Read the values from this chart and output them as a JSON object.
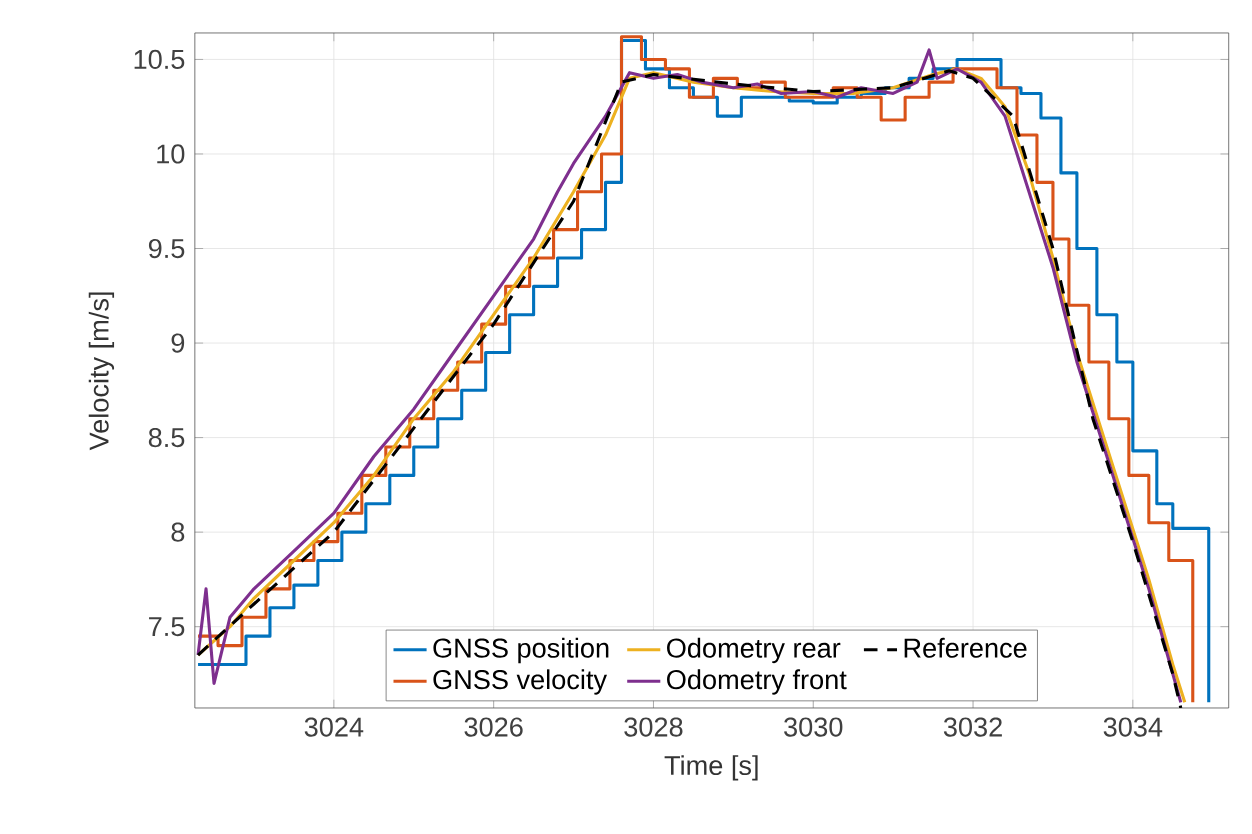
{
  "chart_data": {
    "type": "line",
    "xlabel": "Time [s]",
    "ylabel": "Velocity [m/s]",
    "xlim": [
      3022.26,
      3035.2
    ],
    "ylim": [
      7.07,
      10.64
    ],
    "xticks": [
      3024,
      3026,
      3028,
      3030,
      3032,
      3034
    ],
    "yticks": [
      7.5,
      8,
      8.5,
      9,
      9.5,
      10,
      10.5
    ],
    "grid": true,
    "legend": "bottom",
    "series": [
      {
        "name": "GNSS position",
        "type": "step",
        "color": "#0072bd",
        "x": [
          3022.3,
          3022.6,
          3022.9,
          3023.2,
          3023.5,
          3023.8,
          3024.1,
          3024.4,
          3024.7,
          3025.0,
          3025.3,
          3025.6,
          3025.9,
          3026.2,
          3026.5,
          3026.8,
          3027.1,
          3027.4,
          3027.6,
          3027.9,
          3028.2,
          3028.5,
          3028.8,
          3029.1,
          3029.4,
          3029.7,
          3030.0,
          3030.3,
          3030.6,
          3030.9,
          3031.2,
          3031.5,
          3031.8,
          3032.1,
          3032.35,
          3032.6,
          3032.85,
          3033.1,
          3033.3,
          3033.55,
          3033.8,
          3034.0,
          3034.3,
          3034.5,
          3034.95
        ],
        "values": [
          7.3,
          7.3,
          7.45,
          7.6,
          7.72,
          7.85,
          8.0,
          8.15,
          8.3,
          8.45,
          8.6,
          8.75,
          8.95,
          9.15,
          9.3,
          9.45,
          9.6,
          9.85,
          10.6,
          10.45,
          10.35,
          10.3,
          10.2,
          10.3,
          10.3,
          10.28,
          10.27,
          10.3,
          10.32,
          10.35,
          10.4,
          10.45,
          10.5,
          10.5,
          10.35,
          10.32,
          10.19,
          9.9,
          9.5,
          9.15,
          8.9,
          8.43,
          8.15,
          8.02,
          7.1
        ]
      },
      {
        "name": "GNSS velocity",
        "type": "step",
        "color": "#d95319",
        "x": [
          3022.3,
          3022.55,
          3022.85,
          3023.15,
          3023.45,
          3023.75,
          3024.05,
          3024.35,
          3024.65,
          3024.95,
          3025.25,
          3025.55,
          3025.85,
          3026.15,
          3026.45,
          3026.75,
          3027.05,
          3027.35,
          3027.6,
          3027.85,
          3028.15,
          3028.45,
          3028.75,
          3029.05,
          3029.35,
          3029.65,
          3029.95,
          3030.25,
          3030.55,
          3030.85,
          3031.15,
          3031.45,
          3031.75,
          3032.05,
          3032.3,
          3032.55,
          3032.8,
          3033.0,
          3033.2,
          3033.45,
          3033.7,
          3033.95,
          3034.2,
          3034.45,
          3034.75
        ],
        "values": [
          7.45,
          7.4,
          7.55,
          7.7,
          7.85,
          7.95,
          8.1,
          8.3,
          8.45,
          8.6,
          8.75,
          8.9,
          9.1,
          9.3,
          9.45,
          9.6,
          9.8,
          10.0,
          10.62,
          10.5,
          10.45,
          10.3,
          10.4,
          10.35,
          10.38,
          10.3,
          10.3,
          10.35,
          10.3,
          10.18,
          10.3,
          10.38,
          10.45,
          10.45,
          10.35,
          10.1,
          9.85,
          9.55,
          9.2,
          8.9,
          8.6,
          8.3,
          8.05,
          7.85,
          7.1
        ]
      },
      {
        "name": "Odometry rear",
        "color": "#edb120",
        "x": [
          3022.3,
          3022.7,
          3023.0,
          3023.5,
          3024.0,
          3024.5,
          3025.0,
          3025.5,
          3026.0,
          3026.5,
          3027.0,
          3027.4,
          3027.7,
          3028.0,
          3028.5,
          3029.0,
          3029.5,
          3030.0,
          3030.5,
          3031.0,
          3031.5,
          3031.8,
          3032.1,
          3032.4,
          3032.7,
          3033.0,
          3033.3,
          3033.6,
          3033.9,
          3034.2,
          3034.5,
          3034.65
        ],
        "values": [
          7.35,
          7.5,
          7.65,
          7.85,
          8.05,
          8.3,
          8.6,
          8.85,
          9.15,
          9.45,
          9.8,
          10.1,
          10.4,
          10.43,
          10.38,
          10.35,
          10.33,
          10.32,
          10.32,
          10.35,
          10.42,
          10.45,
          10.4,
          10.25,
          9.9,
          9.45,
          8.95,
          8.55,
          8.15,
          7.75,
          7.3,
          7.1
        ]
      },
      {
        "name": "Odometry front",
        "color": "#7e2f8e",
        "x": [
          3022.3,
          3022.4,
          3022.5,
          3022.7,
          3023.0,
          3023.5,
          3024.0,
          3024.5,
          3025.0,
          3025.5,
          3026.0,
          3026.5,
          3026.8,
          3027.0,
          3027.4,
          3027.7,
          3028.0,
          3028.3,
          3028.6,
          3029.0,
          3029.3,
          3029.6,
          3030.0,
          3030.3,
          3030.6,
          3031.0,
          3031.3,
          3031.45,
          3031.55,
          3031.8,
          3032.1,
          3032.4,
          3032.7,
          3033.0,
          3033.3,
          3033.6,
          3033.9,
          3034.2,
          3034.5,
          3034.6
        ],
        "values": [
          7.35,
          7.7,
          7.2,
          7.55,
          7.7,
          7.9,
          8.1,
          8.4,
          8.65,
          8.95,
          9.25,
          9.55,
          9.8,
          9.95,
          10.2,
          10.43,
          10.4,
          10.42,
          10.38,
          10.35,
          10.37,
          10.32,
          10.33,
          10.3,
          10.35,
          10.32,
          10.38,
          10.55,
          10.4,
          10.45,
          10.38,
          10.2,
          9.8,
          9.4,
          8.9,
          8.5,
          8.1,
          7.7,
          7.25,
          7.1
        ]
      },
      {
        "name": "Reference",
        "color": "#000000",
        "line_style": "dashed",
        "x": [
          3022.3,
          3023.0,
          3024.0,
          3025.0,
          3026.0,
          3027.0,
          3027.6,
          3028.0,
          3029.0,
          3030.0,
          3031.0,
          3031.7,
          3032.0,
          3032.5,
          3033.0,
          3033.5,
          3034.0,
          3034.5,
          3034.6
        ],
        "values": [
          7.35,
          7.62,
          8.0,
          8.55,
          9.1,
          9.75,
          10.38,
          10.42,
          10.37,
          10.33,
          10.35,
          10.44,
          10.4,
          10.2,
          9.5,
          8.6,
          7.95,
          7.25,
          7.07
        ]
      }
    ]
  }
}
